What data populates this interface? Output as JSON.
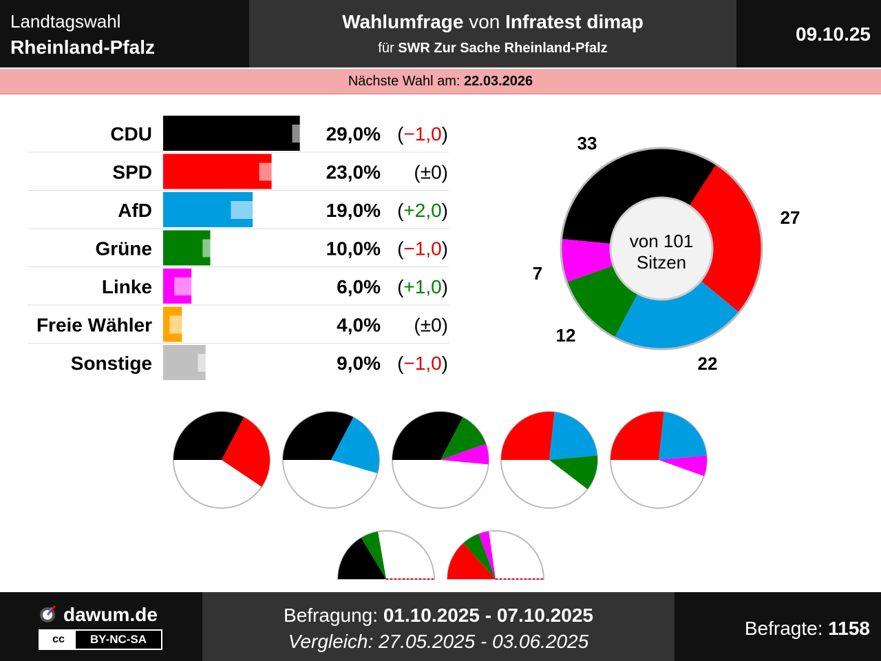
{
  "header": {
    "region_line1": "Landtagswahl",
    "region_line2": "Rheinland-Pfalz",
    "title_bold1": "Wahlumfrage",
    "title_normal": " von ",
    "title_bold2": "Infratest dimap",
    "subtitle_normal": "für ",
    "subtitle_bold": "SWR Zur Sache Rheinland-Pfalz",
    "date": "09.10.25"
  },
  "next_election": {
    "label": "Nächste Wahl am: ",
    "date": "22.03.2026"
  },
  "chart_data": [
    {
      "type": "bar",
      "categories": [
        "CDU",
        "SPD",
        "AfD",
        "Grüne",
        "Linke",
        "Freie Wähler",
        "Sonstige"
      ],
      "values": [
        29.0,
        23.0,
        19.0,
        10.0,
        6.0,
        4.0,
        9.0
      ],
      "previous_values": [
        30.0,
        23.0,
        17.0,
        11.0,
        5.0,
        4.0,
        10.0
      ],
      "value_labels": [
        "29,0%",
        "23,0%",
        "19,0%",
        "10,0%",
        "6,0%",
        "4,0%",
        "9,0%"
      ],
      "change_labels": [
        "(−1,0)",
        "(±0)",
        "(+2,0)",
        "(−1,0)",
        "(+1,0)",
        "(±0)",
        "(−1,0)"
      ],
      "change_colors": [
        "#e00000",
        "#000000",
        "#008000",
        "#e00000",
        "#008000",
        "#000000",
        "#e00000"
      ],
      "colors": [
        "#000000",
        "#ff0000",
        "#009ee0",
        "#008000",
        "#ff00ff",
        "#ffa500",
        "#c0c0c0"
      ]
    },
    {
      "type": "pie",
      "subtype": "donut-seat-distribution",
      "center_label_line1": "von 101",
      "center_label_line2": "Sitzen",
      "labels": [
        "CDU",
        "SPD",
        "AfD",
        "Grüne",
        "Linke"
      ],
      "values": [
        33,
        27,
        22,
        12,
        7
      ],
      "value_labels": [
        "33",
        "27",
        "22",
        "12",
        "7"
      ],
      "colors": [
        "#000000",
        "#ff0000",
        "#009ee0",
        "#008000",
        "#ff00ff"
      ]
    },
    {
      "type": "pie",
      "subtype": "coalition-options",
      "total_seats": 101,
      "coalitions": [
        {
          "parties": [
            "CDU",
            "SPD"
          ],
          "seats": [
            33,
            27
          ],
          "colors": [
            "#000000",
            "#ff0000"
          ]
        },
        {
          "parties": [
            "CDU",
            "AfD"
          ],
          "seats": [
            33,
            22
          ],
          "colors": [
            "#000000",
            "#009ee0"
          ]
        },
        {
          "parties": [
            "CDU",
            "Grüne",
            "Linke"
          ],
          "seats": [
            33,
            12,
            7
          ],
          "colors": [
            "#000000",
            "#008000",
            "#ff00ff"
          ]
        },
        {
          "parties": [
            "SPD",
            "AfD",
            "Grüne"
          ],
          "seats": [
            27,
            22,
            12
          ],
          "colors": [
            "#ff0000",
            "#009ee0",
            "#008000"
          ]
        },
        {
          "parties": [
            "SPD",
            "AfD",
            "Linke"
          ],
          "seats": [
            27,
            22,
            7
          ],
          "colors": [
            "#ff0000",
            "#009ee0",
            "#ff00ff"
          ]
        },
        {
          "parties": [
            "CDU",
            "Grüne"
          ],
          "seats": [
            33,
            12
          ],
          "colors": [
            "#000000",
            "#008000"
          ],
          "half": true
        },
        {
          "parties": [
            "SPD",
            "Grüne",
            "Linke"
          ],
          "seats": [
            27,
            12,
            7
          ],
          "colors": [
            "#ff0000",
            "#008000",
            "#ff00ff"
          ],
          "half": true
        }
      ]
    }
  ],
  "footer": {
    "brand": "dawum.de",
    "license_left": "cc",
    "license_right": "BY-NC-SA",
    "survey_label": "Befragung: ",
    "survey_dates": "01.10.2025 - 07.10.2025",
    "comparison": "Vergleich: 27.05.2025 - 03.06.2025",
    "respondents_label": "Befragte: ",
    "respondents": "1158"
  }
}
